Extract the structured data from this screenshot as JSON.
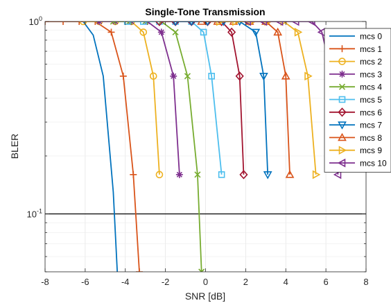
{
  "chart_data": {
    "type": "line",
    "title": "Single-Tone Transmission",
    "xlabel": "SNR [dB]",
    "ylabel": "BLER",
    "xlim": [
      -8,
      8
    ],
    "ylim": [
      0.05,
      1
    ],
    "yscale": "log",
    "grid": true,
    "legend_position": "top-right",
    "xticks": [
      "-8",
      "-6",
      "-4",
      "-2",
      "0",
      "2",
      "4",
      "6",
      "8"
    ],
    "yticks": [
      {
        "value": 1,
        "base": "10",
        "exp": "0"
      },
      {
        "value": 0.1,
        "base": "10",
        "exp": "-1"
      }
    ],
    "reference_line": {
      "y": 0.1,
      "color": "#000000"
    },
    "series": [
      {
        "name": "mcs 0",
        "color": "#0072BD",
        "marker": "none",
        "x": [
          -8,
          -6.1,
          -5.6,
          -5.1,
          -4.6,
          -4.4
        ],
        "y": [
          1,
          1,
          0.85,
          0.52,
          0.13,
          0.05
        ]
      },
      {
        "name": "mcs 1",
        "color": "#D95319",
        "marker": "plus",
        "x": [
          -8,
          -7.1,
          -6.3,
          -5.5,
          -4.7,
          -4.1,
          -3.6,
          -3.3
        ],
        "y": [
          1,
          1,
          1,
          1,
          0.88,
          0.52,
          0.16,
          0.05
        ]
      },
      {
        "name": "mcs 2",
        "color": "#EDB120",
        "marker": "circle",
        "x": [
          -6.1,
          -5.3,
          -4.5,
          -3.7,
          -3.1,
          -2.6,
          -2.3
        ],
        "y": [
          1,
          1,
          1,
          1,
          0.88,
          0.52,
          0.16
        ]
      },
      {
        "name": "mcs 3",
        "color": "#7E2F8E",
        "marker": "asterisk",
        "x": [
          -5.3,
          -4.5,
          -3.7,
          -2.9,
          -2.2,
          -1.6,
          -1.3
        ],
        "y": [
          1,
          1,
          1,
          1,
          0.88,
          0.52,
          0.16
        ]
      },
      {
        "name": "mcs 4",
        "color": "#77AC30",
        "marker": "x",
        "x": [
          -4.6,
          -3.8,
          -3.0,
          -2.2,
          -1.5,
          -0.9,
          -0.4,
          -0.2
        ],
        "y": [
          1,
          1,
          1,
          1,
          0.88,
          0.52,
          0.16,
          0.05
        ]
      },
      {
        "name": "mcs 5",
        "color": "#4DBEEE",
        "marker": "square",
        "x": [
          -3.9,
          -3.1,
          -2.3,
          -1.5,
          -0.7,
          -0.1,
          0.3,
          0.8
        ],
        "y": [
          1,
          1,
          1,
          1,
          1,
          0.88,
          0.52,
          0.16
        ]
      },
      {
        "name": "mcs 6",
        "color": "#A2142F",
        "marker": "diamond",
        "x": [
          -2.3,
          -1.5,
          -0.7,
          0.1,
          0.8,
          1.3,
          1.7,
          1.9
        ],
        "y": [
          1,
          1,
          1,
          1,
          1,
          0.88,
          0.52,
          0.16
        ]
      },
      {
        "name": "mcs 7",
        "color": "#0072BD",
        "marker": "triangle-down",
        "x": [
          -1.5,
          -0.7,
          0.1,
          0.9,
          1.7,
          2.5,
          2.9,
          3.1
        ],
        "y": [
          1,
          1,
          1,
          1,
          1,
          0.88,
          0.52,
          0.16
        ]
      },
      {
        "name": "mcs 8",
        "color": "#D95319",
        "marker": "triangle-up",
        "x": [
          -0.2,
          0.6,
          1.4,
          2.2,
          3.0,
          3.6,
          4.0,
          4.2
        ],
        "y": [
          1,
          1,
          1,
          1,
          1,
          0.88,
          0.52,
          0.16
        ]
      },
      {
        "name": "mcs 9",
        "color": "#EDB120",
        "marker": "triangle-right",
        "x": [
          0.7,
          1.5,
          2.3,
          3.1,
          3.9,
          4.6,
          5.1,
          5.5
        ],
        "y": [
          1,
          1,
          1,
          1,
          1,
          0.88,
          0.52,
          0.16
        ]
      },
      {
        "name": "mcs 10",
        "color": "#7E2F8E",
        "marker": "triangle-left",
        "x": [
          2.1,
          2.9,
          3.7,
          4.5,
          5.3,
          5.8,
          6.3,
          6.6
        ],
        "y": [
          1,
          1,
          1,
          1,
          1,
          0.88,
          0.52,
          0.16
        ]
      }
    ]
  }
}
